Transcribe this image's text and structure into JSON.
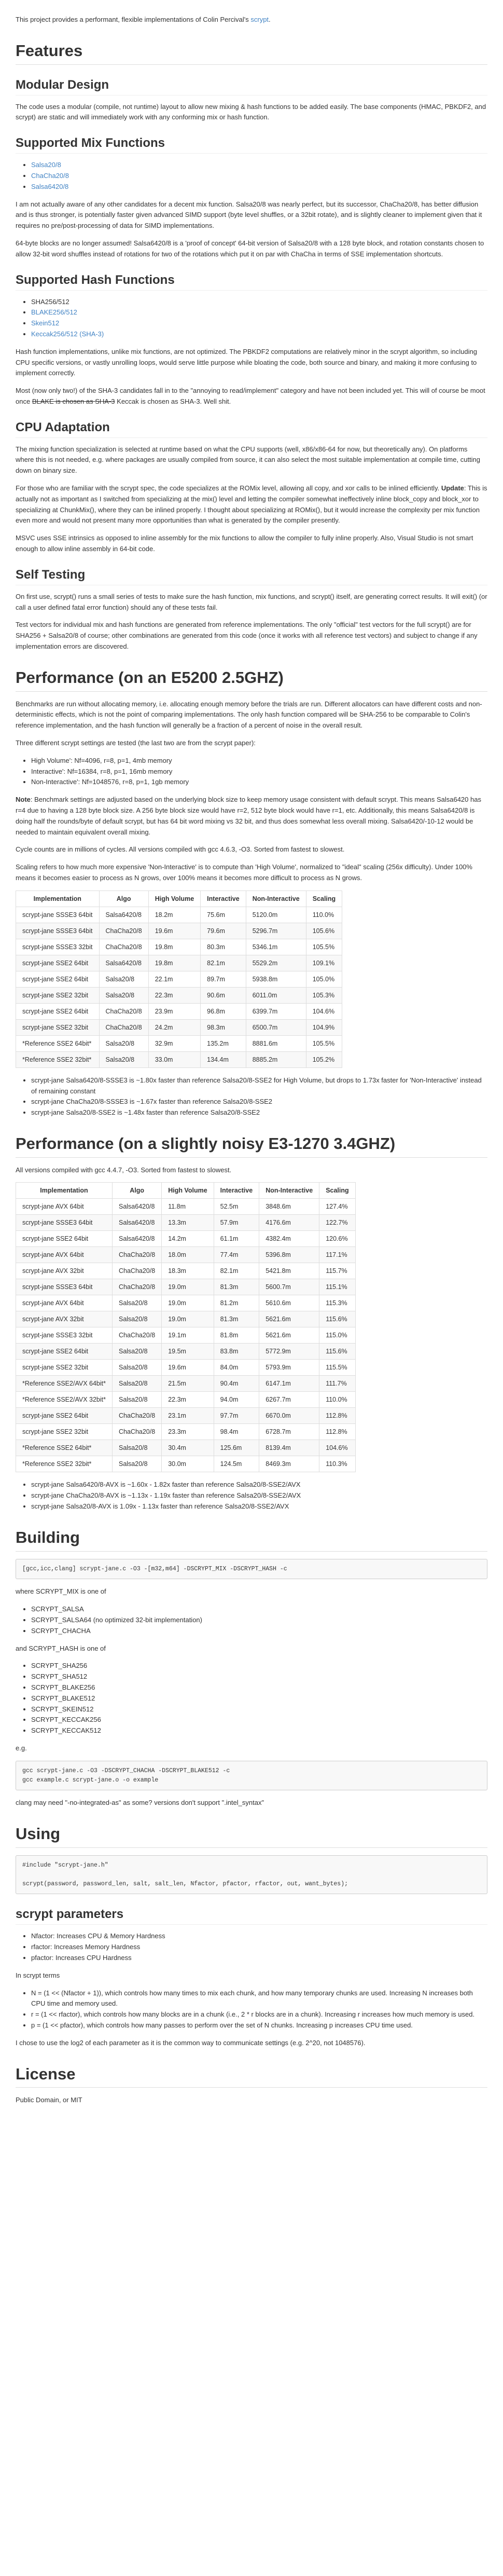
{
  "intro": {
    "text": "This project provides a performant, flexible implementations of Colin Percival's",
    "link": "scrypt",
    "end": "."
  },
  "features": {
    "title": "Features",
    "modular": {
      "title": "Modular Design",
      "p1": "The code uses a modular (compile, not runtime) layout to allow new mixing & hash functions to be added easily. The base components (HMAC, PBKDF2, and scrypt) are static and will immediately work with any conforming mix or hash function."
    },
    "mix": {
      "title": "Supported Mix Functions",
      "items": [
        "Salsa20/8",
        "ChaCha20/8",
        "Salsa6420/8"
      ],
      "p1": "I am not actually aware of any other candidates for a decent mix function. Salsa20/8 was nearly perfect, but its successor, ChaCha20/8, has better diffusion and is thus stronger, is potentially faster given advanced SIMD support (byte level shuffles, or a 32bit rotate), and is slightly cleaner to implement given that it requires no pre/post-processing of data for SIMD implementations.",
      "p2": "64-byte blocks are no longer assumed! Salsa6420/8 is a 'proof of concept' 64-bit version of Salsa20/8 with a 128 byte block, and rotation constants chosen to allow 32-bit word shuffles instead of rotations for two of the rotations which put it on par with ChaCha in terms of SSE implementation shortcuts."
    },
    "hash": {
      "title": "Supported Hash Functions",
      "items": [
        "SHA256/512",
        "BLAKE256/512",
        "Skein512",
        "Keccak256/512 (SHA-3)"
      ],
      "p1": "Hash function implementations, unlike mix functions, are not optimized. The PBKDF2 computations are relatively minor in the scrypt algorithm, so including CPU specific versions, or vastly unrolling loops, would serve little purpose while bloating the code, both source and binary, and making it more confusing to implement correctly.",
      "p2_a": "Most (now only two!) of the SHA-3 candidates fall in to the \"annoying to read/implement\" category and have not been included yet. This will of course be moot once",
      "p2_strike": "BLAKE is chosen as SHA-3",
      "p2_b": "Keccak is chosen as SHA-3. Well shit."
    },
    "cpu": {
      "title": "CPU Adaptation",
      "p1_a": "The mixing function specialization is selected at runtime based on what the CPU supports (well, x86/x86-64 for now, but theoretically any). On platforms where this is not needed, e.g. where packages are usually compiled from source, it can also select the most suitable implementation at compile time, cutting down on binary size.",
      "p2": "For those who are familiar with the scrypt spec, the code specializes at the ROMix level, allowing all copy, and xor calls to be inlined efficiently.",
      "p2_update_label": "Update",
      "p2_b": ": This is actually not as important as I switched from specializing at the mix() level and letting the compiler somewhat ineffectively inline block_copy and block_xor to specializing at ChunkMix(), where they can be inlined properly. I thought about specializing at ROMix(), but it would increase the complexity per mix function even more and would not present many more opportunities than what is generated by the compiler presently.",
      "p3": "MSVC uses SSE intrinsics as opposed to inline assembly for the mix functions to allow the compiler to fully inline properly. Also, Visual Studio is not smart enough to allow inline assembly in 64-bit code."
    },
    "selftest": {
      "title": "Self Testing",
      "p1": "On first use, scrypt() runs a small series of tests to make sure the hash function, mix functions, and scrypt() itself, are generating correct results. It will exit() (or call a user defined fatal error function) should any of these tests fail.",
      "p2": "Test vectors for individual mix and hash functions are generated from reference implementations. The only \"official\" test vectors for the full scrypt() are for SHA256 + Salsa20/8 of course; other combinations are generated from this code (once it works with all reference test vectors) and subject to change if any implementation errors are discovered."
    }
  },
  "perf1": {
    "title": "Performance (on an E5200 2.5GHZ)",
    "p1": "Benchmarks are run without allocating memory, i.e. allocating enough memory before the trials are run. Different allocators can have different costs and non-deterministic effects, which is not the point of comparing implementations. The only hash function compared will be SHA-256 to be comparable to Colin's reference implementation, and the hash function will generally be a fraction of a percent of noise in the overall result.",
    "p2": "Three different scrypt settings are tested (the last two are from the scrypt paper):",
    "settings": [
      "High Volume': Nf=4096, r=8, p=1, 4mb memory",
      "Interactive': Nf=16384, r=8, p=1, 16mb memory",
      "Non-Interactive': Nf=1048576, r=8, p=1, 1gb memory"
    ],
    "note_label": "Note",
    "note": ": Benchmark settings are adjusted based on the underlying block size to keep memory usage consistent with default scrypt. This means Salsa6420 has r=4 due to having a 128 byte block size. A 256 byte block size would have r=2, 512 byte block would have r=1, etc. Additionally, this means Salsa6420/8 is doing half the rounds/byte of default scrypt, but has 64 bit word mixing vs 32 bit, and thus does somewhat less overall mixing. Salsa6420/-10-12 would be needed to maintain equivalent overall mixing.",
    "p3": "Cycle counts are in millions of cycles. All versions compiled with gcc 4.6.3, -O3. Sorted from fastest to slowest.",
    "p4": "Scaling refers to how much more expensive 'Non-Interactive' is to compute than 'High Volume', normalized to \"ideal\" scaling (256x difficulty). Under 100% means it becomes easier to process as N grows, over 100% means it becomes more difficult to process as N grows.",
    "headers": [
      "Implementation",
      "Algo",
      "High Volume",
      "Interactive",
      "Non-Interactive",
      "Scaling"
    ],
    "rows": [
      [
        "scrypt-jane SSSE3 64bit",
        "Salsa6420/8",
        "18.2m",
        "75.6m",
        "5120.0m",
        "110.0%"
      ],
      [
        "scrypt-jane SSSE3 64bit",
        "ChaCha20/8",
        "19.6m",
        "79.6m",
        "5296.7m",
        "105.6%"
      ],
      [
        "scrypt-jane SSSE3 32bit",
        "ChaCha20/8",
        "19.8m",
        "80.3m",
        "5346.1m",
        "105.5%"
      ],
      [
        "scrypt-jane SSE2 64bit",
        "Salsa6420/8",
        "19.8m",
        "82.1m",
        "5529.2m",
        "109.1%"
      ],
      [
        "scrypt-jane SSE2 64bit",
        "Salsa20/8",
        "22.1m",
        "89.7m",
        "5938.8m",
        "105.0%"
      ],
      [
        "scrypt-jane SSE2 32bit",
        "Salsa20/8",
        "22.3m",
        "90.6m",
        "6011.0m",
        "105.3%"
      ],
      [
        "scrypt-jane SSE2 64bit",
        "ChaCha20/8",
        "23.9m",
        "96.8m",
        "6399.7m",
        "104.6%"
      ],
      [
        "scrypt-jane SSE2 32bit",
        "ChaCha20/8",
        "24.2m",
        "98.3m",
        "6500.7m",
        "104.9%"
      ],
      [
        "*Reference SSE2 64bit*",
        "Salsa20/8",
        "32.9m",
        "135.2m",
        "8881.6m",
        "105.5%"
      ],
      [
        "*Reference SSE2 32bit*",
        "Salsa20/8",
        "33.0m",
        "134.4m",
        "8885.2m",
        "105.2%"
      ]
    ],
    "bullets": [
      "scrypt-jane Salsa6420/8-SSSE3 is ~1.80x faster than reference Salsa20/8-SSE2 for High Volume, but drops to 1.73x faster for 'Non-Interactive' instead of remaining constant",
      "scrypt-jane ChaCha20/8-SSSE3 is ~1.67x faster than reference Salsa20/8-SSE2",
      "scrypt-jane Salsa20/8-SSE2 is ~1.48x faster than reference Salsa20/8-SSE2"
    ]
  },
  "perf2": {
    "title": "Performance (on a slightly noisy E3-1270 3.4GHZ)",
    "p1": "All versions compiled with gcc 4.4.7, -O3. Sorted from fastest to slowest.",
    "headers": [
      "Implementation",
      "Algo",
      "High Volume",
      "Interactive",
      "Non-Interactive",
      "Scaling"
    ],
    "rows": [
      [
        "scrypt-jane AVX 64bit",
        "Salsa6420/8",
        "11.8m",
        "52.5m",
        "3848.6m",
        "127.4%"
      ],
      [
        "scrypt-jane SSSE3 64bit",
        "Salsa6420/8",
        "13.3m",
        "57.9m",
        "4176.6m",
        "122.7%"
      ],
      [
        "scrypt-jane SSE2 64bit",
        "Salsa6420/8",
        "14.2m",
        "61.1m",
        "4382.4m",
        "120.6%"
      ],
      [
        "scrypt-jane AVX 64bit",
        "ChaCha20/8",
        "18.0m",
        "77.4m",
        "5396.8m",
        "117.1%"
      ],
      [
        "scrypt-jane AVX 32bit",
        "ChaCha20/8",
        "18.3m",
        "82.1m",
        "5421.8m",
        "115.7%"
      ],
      [
        "scrypt-jane SSSE3 64bit",
        "ChaCha20/8",
        "19.0m",
        "81.3m",
        "5600.7m",
        "115.1%"
      ],
      [
        "scrypt-jane AVX 64bit",
        "Salsa20/8",
        "19.0m",
        "81.2m",
        "5610.6m",
        "115.3%"
      ],
      [
        "scrypt-jane AVX 32bit",
        "Salsa20/8",
        "19.0m",
        "81.3m",
        "5621.6m",
        "115.6%"
      ],
      [
        "scrypt-jane SSSE3 32bit",
        "ChaCha20/8",
        "19.1m",
        "81.8m",
        "5621.6m",
        "115.0%"
      ],
      [
        "scrypt-jane SSE2 64bit",
        "Salsa20/8",
        "19.5m",
        "83.8m",
        "5772.9m",
        "115.6%"
      ],
      [
        "scrypt-jane SSE2 32bit",
        "Salsa20/8",
        "19.6m",
        "84.0m",
        "5793.9m",
        "115.5%"
      ],
      [
        "*Reference SSE2/AVX 64bit*",
        "Salsa20/8",
        "21.5m",
        "90.4m",
        "6147.1m",
        "111.7%"
      ],
      [
        "*Reference SSE2/AVX 32bit*",
        "Salsa20/8",
        "22.3m",
        "94.0m",
        "6267.7m",
        "110.0%"
      ],
      [
        "scrypt-jane SSE2 64bit",
        "ChaCha20/8",
        "23.1m",
        "97.7m",
        "6670.0m",
        "112.8%"
      ],
      [
        "scrypt-jane SSE2 32bit",
        "ChaCha20/8",
        "23.3m",
        "98.4m",
        "6728.7m",
        "112.8%"
      ],
      [
        "*Reference SSE2 64bit*",
        "Salsa20/8",
        "30.4m",
        "125.6m",
        "8139.4m",
        "104.6%"
      ],
      [
        "*Reference SSE2 32bit*",
        "Salsa20/8",
        "30.0m",
        "124.5m",
        "8469.3m",
        "110.3%"
      ]
    ],
    "bullets": [
      "scrypt-jane Salsa6420/8-AVX is ~1.60x - 1.82x faster than reference Salsa20/8-SSE2/AVX",
      "scrypt-jane ChaCha20/8-AVX is ~1.13x - 1.19x faster than reference Salsa20/8-SSE2/AVX",
      "scrypt-jane Salsa20/8-AVX is 1.09x - 1.13x faster than reference Salsa20/8-SSE2/AVX"
    ]
  },
  "building": {
    "title": "Building",
    "cmd": "[gcc,icc,clang] scrypt-jane.c -O3 -[m32,m64] -DSCRYPT_MIX -DSCRYPT_HASH -c",
    "where": "where SCRYPT_MIX is one of",
    "mix_items": [
      "SCRYPT_SALSA",
      "SCRYPT_SALSA64 (no optimized 32-bit implementation)",
      "SCRYPT_CHACHA"
    ],
    "and": "and SCRYPT_HASH is one of",
    "hash_items": [
      "SCRYPT_SHA256",
      "SCRYPT_SHA512",
      "SCRYPT_BLAKE256",
      "SCRYPT_BLAKE512",
      "SCRYPT_SKEIN512",
      "SCRYPT_KECCAK256",
      "SCRYPT_KECCAK512"
    ],
    "eg": "e.g.",
    "example": "gcc scrypt-jane.c -O3 -DSCRYPT_CHACHA -DSCRYPT_BLAKE512 -c\ngcc example.c scrypt-jane.o -o example",
    "clang_note": "clang may need \"-no-integrated-as\" as some? versions don't support \".intel_syntax\""
  },
  "using": {
    "title": "Using",
    "code": "#include \"scrypt-jane.h\"\n\nscrypt(password, password_len, salt, salt_len, Nfactor, pfactor, rfactor, out, want_bytes);",
    "params_title": "scrypt parameters",
    "params": [
      "Nfactor: Increases CPU & Memory Hardness",
      "rfactor: Increases Memory Hardness",
      "pfactor: Increases CPU Hardness"
    ],
    "in_terms": "In scrypt terms",
    "terms": [
      "N = (1 << (Nfactor + 1)), which controls how many times to mix each chunk, and how many temporary chunks are used. Increasing N increases both CPU time and memory used.",
      "r = (1 << rfactor), which controls how many blocks are in a chunk (i.e., 2 * r blocks are in a chunk). Increasing r increases how much memory is used.",
      "p = (1 << pfactor), which controls how many passes to perform over the set of N chunks. Increasing p increases CPU time used."
    ],
    "closing": "I chose to use the log2 of each parameter as it is the common way to communicate settings (e.g. 2^20, not 1048576)."
  },
  "license": {
    "title": "License",
    "text": "Public Domain, or MIT"
  }
}
